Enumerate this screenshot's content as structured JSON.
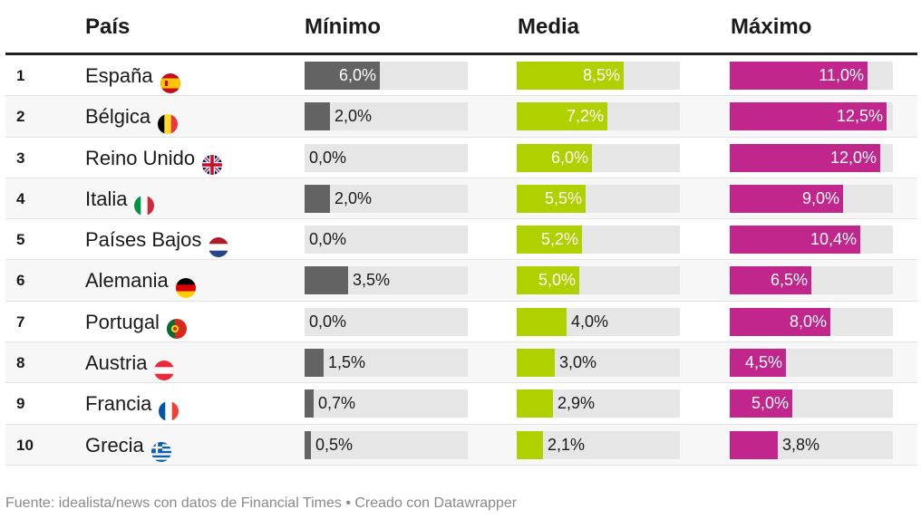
{
  "chart_data": {
    "type": "table",
    "columns": [
      "País",
      "Mínimo",
      "Media",
      "Máximo"
    ],
    "colors": {
      "min": "#636363",
      "mean": "#b0d000",
      "max": "#c0268b"
    },
    "scale_max_percent": 13,
    "rows": [
      {
        "rank": "1",
        "country": "España",
        "flag": "es",
        "min": 6.0,
        "min_label": "6,0%",
        "mean": 8.5,
        "mean_label": "8,5%",
        "max": 11.0,
        "max_label": "11,0%"
      },
      {
        "rank": "2",
        "country": "Bélgica",
        "flag": "be",
        "min": 2.0,
        "min_label": "2,0%",
        "mean": 7.2,
        "mean_label": "7,2%",
        "max": 12.5,
        "max_label": "12,5%"
      },
      {
        "rank": "3",
        "country": "Reino Unido",
        "flag": "gb",
        "min": 0.0,
        "min_label": "0,0%",
        "mean": 6.0,
        "mean_label": "6,0%",
        "max": 12.0,
        "max_label": "12,0%"
      },
      {
        "rank": "4",
        "country": "Italia",
        "flag": "it",
        "min": 2.0,
        "min_label": "2,0%",
        "mean": 5.5,
        "mean_label": "5,5%",
        "max": 9.0,
        "max_label": "9,0%"
      },
      {
        "rank": "5",
        "country": "Países Bajos",
        "flag": "nl",
        "min": 0.0,
        "min_label": "0,0%",
        "mean": 5.2,
        "mean_label": "5,2%",
        "max": 10.4,
        "max_label": "10,4%"
      },
      {
        "rank": "6",
        "country": "Alemania",
        "flag": "de",
        "min": 3.5,
        "min_label": "3,5%",
        "mean": 5.0,
        "mean_label": "5,0%",
        "max": 6.5,
        "max_label": "6,5%"
      },
      {
        "rank": "7",
        "country": "Portugal",
        "flag": "pt",
        "min": 0.0,
        "min_label": "0,0%",
        "mean": 4.0,
        "mean_label": "4,0%",
        "max": 8.0,
        "max_label": "8,0%"
      },
      {
        "rank": "8",
        "country": "Austria",
        "flag": "at",
        "min": 1.5,
        "min_label": "1,5%",
        "mean": 3.0,
        "mean_label": "3,0%",
        "max": 4.5,
        "max_label": "4,5%"
      },
      {
        "rank": "9",
        "country": "Francia",
        "flag": "fr",
        "min": 0.7,
        "min_label": "0,7%",
        "mean": 2.9,
        "mean_label": "2,9%",
        "max": 5.0,
        "max_label": "5,0%"
      },
      {
        "rank": "10",
        "country": "Grecia",
        "flag": "gr",
        "min": 0.5,
        "min_label": "0,5%",
        "mean": 2.1,
        "mean_label": "2,1%",
        "max": 3.8,
        "max_label": "3,8%"
      }
    ]
  },
  "footer": "Fuente: idealista/news con datos de Financial Times • Creado con Datawrapper"
}
